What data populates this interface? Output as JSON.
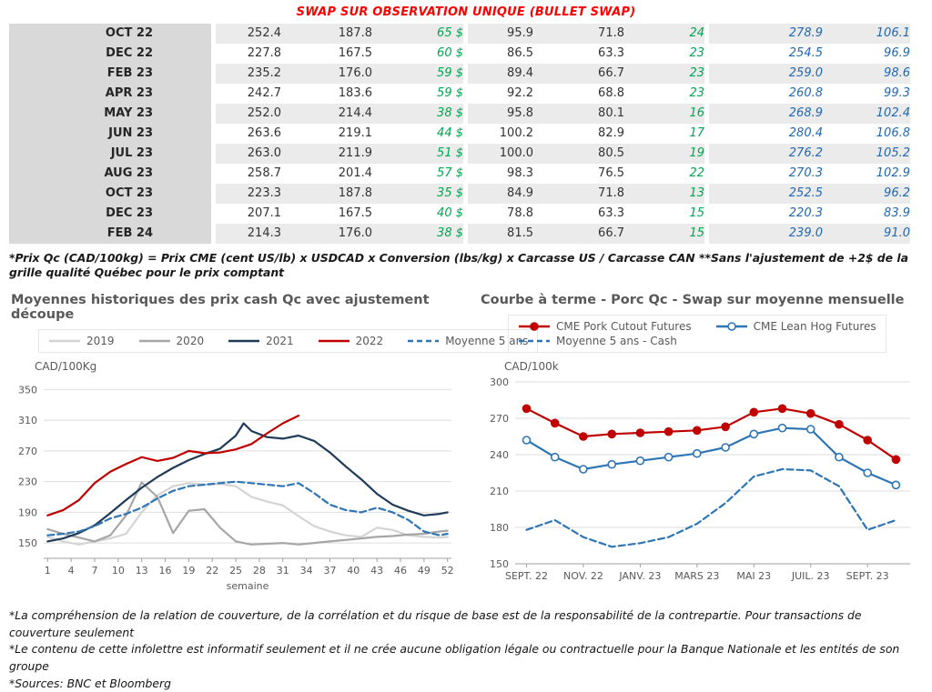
{
  "title": "SWAP SUR OBSERVATION UNIQUE (BULLET SWAP)",
  "colors": {
    "title": "#ff0000",
    "green": "#00a651",
    "blue": "#1f68b4"
  },
  "table": {
    "rows": [
      {
        "month": "OCT 22",
        "values": [
          "252.4",
          "187.8",
          "65 $",
          "95.9",
          "71.8",
          "24",
          "278.9",
          "106.1"
        ]
      },
      {
        "month": "DEC 22",
        "values": [
          "227.8",
          "167.5",
          "60 $",
          "86.5",
          "63.3",
          "23",
          "254.5",
          "96.9"
        ]
      },
      {
        "month": "FEB 23",
        "values": [
          "235.2",
          "176.0",
          "59 $",
          "89.4",
          "66.7",
          "23",
          "259.0",
          "98.6"
        ]
      },
      {
        "month": "APR 23",
        "values": [
          "242.7",
          "183.6",
          "59 $",
          "92.2",
          "68.8",
          "23",
          "260.8",
          "99.3"
        ]
      },
      {
        "month": "MAY 23",
        "values": [
          "252.0",
          "214.4",
          "38 $",
          "95.8",
          "80.1",
          "16",
          "268.9",
          "102.4"
        ]
      },
      {
        "month": "JUN 23",
        "values": [
          "263.6",
          "219.1",
          "44 $",
          "100.2",
          "82.9",
          "17",
          "280.4",
          "106.8"
        ]
      },
      {
        "month": "JUL 23",
        "values": [
          "263.0",
          "211.9",
          "51 $",
          "100.0",
          "80.5",
          "19",
          "276.2",
          "105.2"
        ]
      },
      {
        "month": "AUG 23",
        "values": [
          "258.7",
          "201.4",
          "57 $",
          "98.3",
          "76.5",
          "22",
          "270.3",
          "102.9"
        ]
      },
      {
        "month": "OCT 23",
        "values": [
          "223.3",
          "187.8",
          "35 $",
          "84.9",
          "71.8",
          "13",
          "252.5",
          "96.2"
        ]
      },
      {
        "month": "DEC 23",
        "values": [
          "207.1",
          "167.5",
          "40 $",
          "78.8",
          "63.3",
          "15",
          "220.3",
          "83.9"
        ]
      },
      {
        "month": "FEB 24",
        "values": [
          "214.3",
          "176.0",
          "38 $",
          "81.5",
          "66.7",
          "15",
          "239.0",
          "91.0"
        ]
      }
    ]
  },
  "table_footnote": "*Prix Qc (CAD/100kg) = Prix CME (cent US/lb) x USDCAD x Conversion (lbs/kg) x Carcasse US / Carcasse CAN **Sans l'ajustement de +2$ de la grille qualité Québec pour le prix comptant",
  "chart_data": [
    {
      "type": "line",
      "title": "Moyennes historiques des prix cash Qc avec ajustement découpe",
      "ylabel": "CAD/100Kg",
      "xlabel": "semaine",
      "ylim": [
        130,
        360
      ],
      "yticks": [
        150,
        190,
        230,
        270,
        310,
        350
      ],
      "xlim": [
        0.5,
        52.5
      ],
      "xticks": [
        1,
        4,
        7,
        10,
        13,
        16,
        19,
        22,
        25,
        28,
        31,
        34,
        37,
        40,
        43,
        46,
        49,
        52
      ],
      "grid": true,
      "legend_position": "top",
      "series": [
        {
          "name": "2019",
          "color": "#d4d4d4",
          "x": [
            1,
            3,
            5,
            7,
            9,
            11,
            13,
            15,
            17,
            19,
            21,
            23,
            25,
            27,
            29,
            31,
            33,
            35,
            37,
            39,
            41,
            43,
            45,
            47,
            49,
            51,
            52
          ],
          "values": [
            158,
            152,
            148,
            152,
            156,
            162,
            190,
            212,
            224,
            228,
            226,
            227,
            224,
            210,
            204,
            199,
            185,
            172,
            165,
            160,
            158,
            170,
            167,
            160,
            158,
            157,
            158
          ]
        },
        {
          "name": "2020",
          "color": "#a6a6a6",
          "x": [
            1,
            3,
            5,
            7,
            9,
            11,
            13,
            15,
            17,
            19,
            21,
            23,
            25,
            27,
            29,
            31,
            33,
            35,
            37,
            39,
            41,
            43,
            45,
            47,
            49,
            51,
            52
          ],
          "values": [
            168,
            162,
            157,
            152,
            160,
            186,
            229,
            210,
            163,
            192,
            194,
            170,
            152,
            148,
            149,
            150,
            148,
            150,
            152,
            154,
            156,
            158,
            159,
            161,
            162,
            165,
            166
          ]
        },
        {
          "name": "2021",
          "color": "#1f3b57",
          "x": [
            1,
            3,
            5,
            7,
            9,
            11,
            13,
            15,
            17,
            19,
            21,
            23,
            25,
            26,
            27,
            29,
            31,
            33,
            35,
            37,
            39,
            41,
            43,
            45,
            47,
            49,
            51,
            52
          ],
          "values": [
            152,
            156,
            163,
            173,
            189,
            206,
            222,
            236,
            248,
            258,
            266,
            273,
            290,
            306,
            296,
            288,
            286,
            290,
            283,
            268,
            250,
            233,
            214,
            200,
            192,
            186,
            188,
            190
          ]
        },
        {
          "name": "2022",
          "color": "#c00000",
          "x": [
            1,
            3,
            5,
            7,
            9,
            11,
            13,
            15,
            17,
            19,
            21,
            23,
            25,
            27,
            29,
            31,
            33
          ],
          "values": [
            186,
            193,
            206,
            228,
            243,
            253,
            262,
            257,
            261,
            270,
            267,
            268,
            272,
            279,
            293,
            306,
            316
          ]
        },
        {
          "name": "Moyenne 5 ans",
          "color": "#2e75b6",
          "dash": "7 4",
          "x": [
            1,
            3,
            5,
            7,
            9,
            11,
            13,
            15,
            17,
            19,
            21,
            23,
            25,
            27,
            29,
            31,
            33,
            35,
            37,
            39,
            41,
            43,
            45,
            47,
            49,
            51,
            52
          ],
          "values": [
            160,
            162,
            165,
            172,
            182,
            188,
            196,
            208,
            218,
            224,
            226,
            228,
            230,
            228,
            226,
            224,
            228,
            215,
            200,
            193,
            190,
            196,
            190,
            180,
            165,
            160,
            162
          ]
        }
      ]
    },
    {
      "type": "line",
      "title": "Courbe à terme - Porc Qc - Swap sur moyenne mensuelle",
      "ylabel": "CAD/100k",
      "xlabel": "",
      "ylim": [
        150,
        300
      ],
      "yticks": [
        150,
        180,
        210,
        240,
        270,
        300
      ],
      "xlim": [
        -0.4,
        13.5
      ],
      "xtick_positions": [
        0,
        2,
        4,
        6,
        8,
        10,
        12
      ],
      "xtick_labels": [
        "SEPT. 22",
        "NOV. 22",
        "JANV. 23",
        "MARS 23",
        "MAI 23",
        "JUIL. 23",
        "SEPT. 23"
      ],
      "grid": true,
      "legend_position": "top",
      "series": [
        {
          "name": "CME Pork Cutout Futures",
          "color": "#c00000",
          "marker": "filled",
          "values": [
            278,
            266,
            255,
            257,
            258,
            259,
            260,
            263,
            275,
            278,
            274,
            265,
            252,
            236
          ]
        },
        {
          "name": "CME Lean Hog Futures",
          "color": "#2e75b6",
          "marker": "open",
          "values": [
            252,
            238,
            228,
            232,
            235,
            238,
            241,
            246,
            257,
            262,
            261,
            238,
            225,
            215
          ]
        },
        {
          "name": "Moyenne 5 ans - Cash",
          "color": "#2e75b6",
          "dash": "7 4",
          "values": [
            178,
            186,
            172,
            164,
            167,
            172,
            183,
            200,
            222,
            228,
            227,
            214,
            178,
            186
          ]
        }
      ]
    }
  ],
  "footnotes": [
    "*La compréhension de la relation de couverture, de la corrélation et du risque de base est de la responsabilité de la contrepartie. Pour transactions de couverture seulement",
    "*Le contenu de cette infolettre est informatif seulement et il ne crée aucune obligation légale ou contractuelle pour la Banque Nationale et les entités de son groupe",
    "*Sources: BNC et Bloomberg"
  ]
}
